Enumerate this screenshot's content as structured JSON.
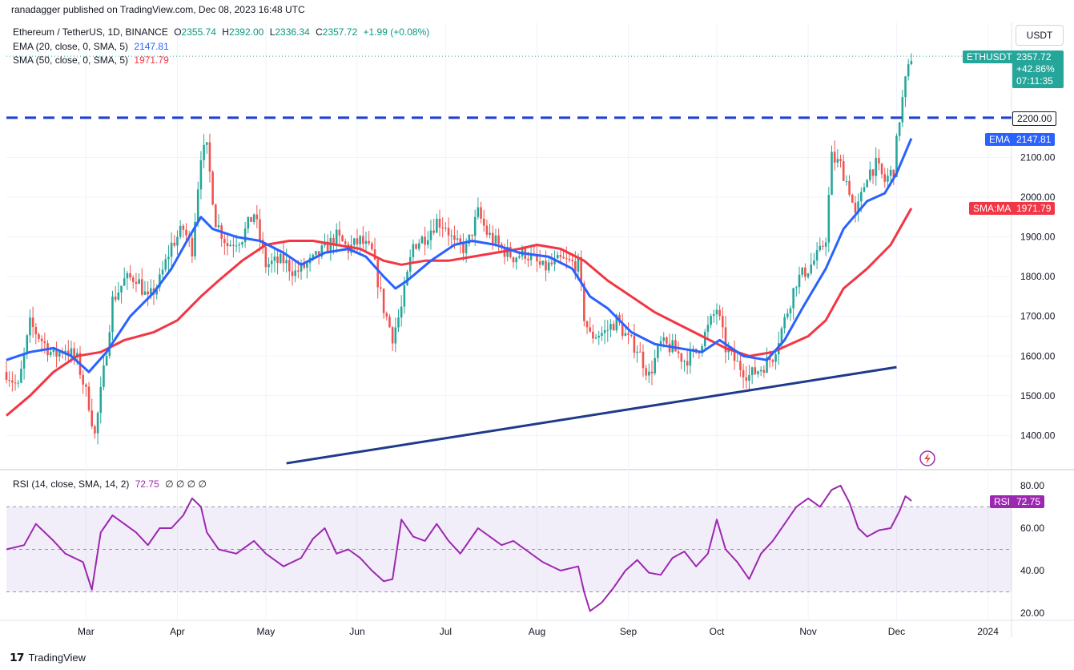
{
  "header": {
    "credit": "ranadagger published on TradingView.com, Dec 08, 2023 16:48 UTC",
    "symbol": "Ethereum / TetherUS, 1D, BINANCE",
    "o_label": "O",
    "o_value": "2355.74",
    "h_label": "H",
    "h_value": "2392.00",
    "l_label": "L",
    "l_value": "2336.34",
    "c_label": "C",
    "c_value": "2357.72",
    "change": "+1.99 (+0.08%)",
    "ema_label": "EMA (20, close, 0, SMA, 5)",
    "ema_value": "2147.81",
    "sma_label": "SMA (50, close, 0, SMA, 5)",
    "sma_value": "1971.79",
    "currency": "USDT"
  },
  "price_tags": {
    "ticker": "ETHUSDT",
    "price": "2357.72",
    "pct": "+42.86%",
    "countdown": "07:11:35",
    "level": "2200.00",
    "ema_name": "EMA",
    "ema": "2147.81",
    "sma_name": "SMA:MA",
    "sma": "1971.79",
    "rsi_name": "RSI",
    "rsi": "72.75"
  },
  "rsi_header": {
    "label": "RSI (14, close, SMA, 14, 2)",
    "value": "72.75",
    "extras": "∅ ∅ ∅ ∅"
  },
  "footer": {
    "brand": "TradingView"
  },
  "colors": {
    "up": "#26a69a",
    "down": "#ef5350",
    "ema": "#2962ff",
    "sma": "#f23645",
    "rsi": "#9c27b0",
    "level": "#1c3fd8",
    "trend": "#1e3a8a"
  },
  "chart_data": {
    "type": "candlestick",
    "y_ticks": [
      "1400.00",
      "1500.00",
      "1600.00",
      "1700.00",
      "1800.00",
      "1900.00",
      "2000.00",
      "2100.00"
    ],
    "ylim": [
      1320,
      2440
    ],
    "x_ticks": [
      {
        "label": "Mar",
        "day": 27
      },
      {
        "label": "Apr",
        "day": 58
      },
      {
        "label": "May",
        "day": 88
      },
      {
        "label": "Jun",
        "day": 119
      },
      {
        "label": "Jul",
        "day": 149
      },
      {
        "label": "Aug",
        "day": 180
      },
      {
        "label": "Sep",
        "day": 211
      },
      {
        "label": "Oct",
        "day": 241
      },
      {
        "label": "Nov",
        "day": 272
      },
      {
        "label": "Dec",
        "day": 302
      },
      {
        "label": "2024",
        "day": 333
      }
    ],
    "xlim": [
      0,
      341
    ],
    "price_keypoints": [
      [
        0,
        1560
      ],
      [
        4,
        1520
      ],
      [
        8,
        1680
      ],
      [
        12,
        1640
      ],
      [
        16,
        1600
      ],
      [
        20,
        1620
      ],
      [
        24,
        1590
      ],
      [
        28,
        1480
      ],
      [
        30,
        1400
      ],
      [
        33,
        1560
      ],
      [
        36,
        1740
      ],
      [
        40,
        1790
      ],
      [
        44,
        1800
      ],
      [
        48,
        1740
      ],
      [
        52,
        1790
      ],
      [
        56,
        1880
      ],
      [
        60,
        1920
      ],
      [
        63,
        1870
      ],
      [
        66,
        2110
      ],
      [
        68,
        2120
      ],
      [
        71,
        1940
      ],
      [
        75,
        1880
      ],
      [
        80,
        1900
      ],
      [
        84,
        1960
      ],
      [
        88,
        1830
      ],
      [
        94,
        1840
      ],
      [
        98,
        1810
      ],
      [
        104,
        1840
      ],
      [
        108,
        1870
      ],
      [
        112,
        1900
      ],
      [
        116,
        1870
      ],
      [
        120,
        1890
      ],
      [
        124,
        1860
      ],
      [
        128,
        1720
      ],
      [
        131,
        1650
      ],
      [
        134,
        1720
      ],
      [
        138,
        1880
      ],
      [
        142,
        1900
      ],
      [
        146,
        1940
      ],
      [
        149,
        1930
      ],
      [
        152,
        1880
      ],
      [
        156,
        1870
      ],
      [
        160,
        1960
      ],
      [
        163,
        1910
      ],
      [
        168,
        1870
      ],
      [
        172,
        1850
      ],
      [
        176,
        1860
      ],
      [
        182,
        1820
      ],
      [
        188,
        1840
      ],
      [
        194,
        1830
      ],
      [
        196,
        1700
      ],
      [
        198,
        1650
      ],
      [
        203,
        1660
      ],
      [
        207,
        1690
      ],
      [
        211,
        1640
      ],
      [
        214,
        1620
      ],
      [
        218,
        1550
      ],
      [
        222,
        1630
      ],
      [
        226,
        1620
      ],
      [
        230,
        1590
      ],
      [
        234,
        1610
      ],
      [
        238,
        1670
      ],
      [
        241,
        1720
      ],
      [
        244,
        1620
      ],
      [
        248,
        1580
      ],
      [
        252,
        1550
      ],
      [
        256,
        1570
      ],
      [
        260,
        1600
      ],
      [
        264,
        1690
      ],
      [
        268,
        1790
      ],
      [
        272,
        1820
      ],
      [
        276,
        1860
      ],
      [
        278,
        1900
      ],
      [
        280,
        2100
      ],
      [
        283,
        2080
      ],
      [
        286,
        2020
      ],
      [
        288,
        1950
      ],
      [
        290,
        2000
      ],
      [
        292,
        2060
      ],
      [
        295,
        2080
      ],
      [
        298,
        2040
      ],
      [
        301,
        2070
      ],
      [
        303,
        2200
      ],
      [
        305,
        2290
      ],
      [
        306,
        2320
      ],
      [
        307,
        2355
      ]
    ],
    "ema20": {
      "label": "EMA (20, close, 0, SMA, 5)",
      "last": 2147.81,
      "keypoints": [
        [
          0,
          1590
        ],
        [
          8,
          1610
        ],
        [
          16,
          1620
        ],
        [
          22,
          1600
        ],
        [
          28,
          1560
        ],
        [
          34,
          1610
        ],
        [
          42,
          1700
        ],
        [
          50,
          1760
        ],
        [
          56,
          1820
        ],
        [
          62,
          1900
        ],
        [
          66,
          1950
        ],
        [
          70,
          1920
        ],
        [
          78,
          1900
        ],
        [
          86,
          1890
        ],
        [
          94,
          1860
        ],
        [
          100,
          1830
        ],
        [
          108,
          1860
        ],
        [
          116,
          1870
        ],
        [
          122,
          1850
        ],
        [
          128,
          1800
        ],
        [
          132,
          1770
        ],
        [
          136,
          1790
        ],
        [
          144,
          1840
        ],
        [
          152,
          1880
        ],
        [
          158,
          1890
        ],
        [
          166,
          1880
        ],
        [
          174,
          1860
        ],
        [
          184,
          1850
        ],
        [
          192,
          1820
        ],
        [
          198,
          1750
        ],
        [
          204,
          1720
        ],
        [
          212,
          1660
        ],
        [
          220,
          1630
        ],
        [
          228,
          1620
        ],
        [
          236,
          1610
        ],
        [
          242,
          1640
        ],
        [
          250,
          1600
        ],
        [
          258,
          1590
        ],
        [
          264,
          1640
        ],
        [
          270,
          1720
        ],
        [
          278,
          1820
        ],
        [
          284,
          1920
        ],
        [
          292,
          1990
        ],
        [
          298,
          2010
        ],
        [
          302,
          2060
        ],
        [
          307,
          2148
        ]
      ]
    },
    "sma50": {
      "label": "SMA (50, close, 0, SMA, 5)",
      "last": 1971.79,
      "keypoints": [
        [
          0,
          1450
        ],
        [
          8,
          1500
        ],
        [
          16,
          1560
        ],
        [
          24,
          1600
        ],
        [
          32,
          1610
        ],
        [
          40,
          1640
        ],
        [
          50,
          1660
        ],
        [
          58,
          1690
        ],
        [
          66,
          1750
        ],
        [
          72,
          1790
        ],
        [
          80,
          1840
        ],
        [
          88,
          1880
        ],
        [
          96,
          1890
        ],
        [
          104,
          1890
        ],
        [
          112,
          1880
        ],
        [
          120,
          1870
        ],
        [
          128,
          1840
        ],
        [
          134,
          1830
        ],
        [
          142,
          1840
        ],
        [
          150,
          1840
        ],
        [
          158,
          1850
        ],
        [
          166,
          1860
        ],
        [
          174,
          1870
        ],
        [
          180,
          1880
        ],
        [
          188,
          1870
        ],
        [
          196,
          1840
        ],
        [
          204,
          1790
        ],
        [
          212,
          1750
        ],
        [
          220,
          1710
        ],
        [
          228,
          1680
        ],
        [
          236,
          1650
        ],
        [
          244,
          1620
        ],
        [
          252,
          1600
        ],
        [
          260,
          1610
        ],
        [
          266,
          1630
        ],
        [
          272,
          1650
        ],
        [
          278,
          1690
        ],
        [
          284,
          1770
        ],
        [
          292,
          1820
        ],
        [
          300,
          1880
        ],
        [
          307,
          1972
        ]
      ]
    },
    "level_2200": 2200,
    "trendline": [
      [
        95,
        1330
      ],
      [
        302,
        1572
      ]
    ],
    "rsi": {
      "label": "RSI (14, close, SMA, 14, 2)",
      "last": 72.75,
      "ylim": [
        17,
        86
      ],
      "y_ticks": [
        "20.00",
        "40.00",
        "60.00",
        "80.00"
      ],
      "bands": [
        30,
        50,
        70
      ],
      "keypoints": [
        [
          0,
          50
        ],
        [
          6,
          52
        ],
        [
          10,
          62
        ],
        [
          16,
          54
        ],
        [
          20,
          48
        ],
        [
          26,
          44
        ],
        [
          29,
          31
        ],
        [
          32,
          58
        ],
        [
          36,
          66
        ],
        [
          40,
          62
        ],
        [
          44,
          58
        ],
        [
          48,
          52
        ],
        [
          52,
          60
        ],
        [
          56,
          60
        ],
        [
          60,
          66
        ],
        [
          63,
          74
        ],
        [
          66,
          70
        ],
        [
          68,
          58
        ],
        [
          72,
          50
        ],
        [
          78,
          48
        ],
        [
          84,
          54
        ],
        [
          88,
          48
        ],
        [
          94,
          42
        ],
        [
          100,
          46
        ],
        [
          104,
          55
        ],
        [
          108,
          60
        ],
        [
          112,
          48
        ],
        [
          116,
          50
        ],
        [
          120,
          46
        ],
        [
          124,
          40
        ],
        [
          128,
          35
        ],
        [
          131,
          36
        ],
        [
          134,
          64
        ],
        [
          138,
          56
        ],
        [
          142,
          54
        ],
        [
          146,
          62
        ],
        [
          150,
          54
        ],
        [
          154,
          48
        ],
        [
          160,
          60
        ],
        [
          164,
          56
        ],
        [
          168,
          52
        ],
        [
          172,
          54
        ],
        [
          176,
          50
        ],
        [
          182,
          44
        ],
        [
          188,
          40
        ],
        [
          194,
          42
        ],
        [
          196,
          30
        ],
        [
          198,
          21
        ],
        [
          202,
          25
        ],
        [
          206,
          32
        ],
        [
          210,
          40
        ],
        [
          214,
          45
        ],
        [
          218,
          39
        ],
        [
          222,
          38
        ],
        [
          226,
          46
        ],
        [
          230,
          49
        ],
        [
          234,
          42
        ],
        [
          238,
          48
        ],
        [
          241,
          64
        ],
        [
          244,
          50
        ],
        [
          248,
          44
        ],
        [
          252,
          36
        ],
        [
          256,
          48
        ],
        [
          260,
          54
        ],
        [
          264,
          62
        ],
        [
          268,
          70
        ],
        [
          272,
          74
        ],
        [
          276,
          70
        ],
        [
          280,
          78
        ],
        [
          283,
          80
        ],
        [
          286,
          72
        ],
        [
          289,
          60
        ],
        [
          292,
          56
        ],
        [
          296,
          59
        ],
        [
          300,
          60
        ],
        [
          303,
          68
        ],
        [
          305,
          75
        ],
        [
          306,
          74
        ],
        [
          307,
          72.75
        ]
      ]
    }
  }
}
